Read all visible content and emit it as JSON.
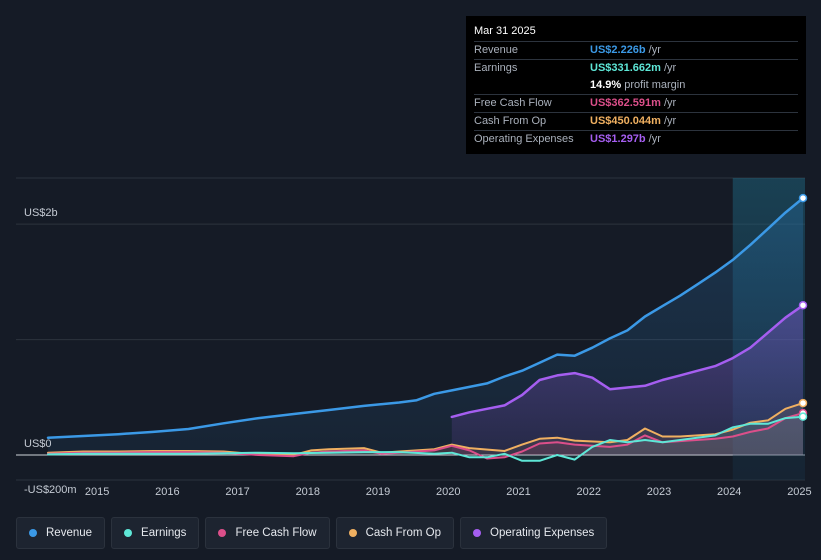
{
  "tooltip": {
    "date": "Mar 31 2025",
    "rows": [
      {
        "label": "Revenue",
        "value": "US$2.226b",
        "unit": "/yr"
      },
      {
        "label": "Earnings",
        "value": "US$331.662m",
        "unit": "/yr"
      },
      {
        "label": "",
        "value": "14.9%",
        "unit": "profit margin"
      },
      {
        "label": "Free Cash Flow",
        "value": "US$362.591m",
        "unit": "/yr"
      },
      {
        "label": "Cash From Op",
        "value": "US$450.044m",
        "unit": "/yr"
      },
      {
        "label": "Operating Expenses",
        "value": "US$1.297b",
        "unit": "/yr"
      }
    ]
  },
  "legend": [
    {
      "label": "Revenue",
      "color": "#3b99e6"
    },
    {
      "label": "Earnings",
      "color": "#5ee7d7"
    },
    {
      "label": "Free Cash Flow",
      "color": "#dc4f8a"
    },
    {
      "label": "Cash From Op",
      "color": "#f0b061"
    },
    {
      "label": "Operating Expenses",
      "color": "#a55ef0"
    }
  ],
  "chart_data": {
    "type": "line",
    "title": "",
    "y_unit": "US$ millions",
    "ylim": [
      -200,
      2400
    ],
    "y_tick_labels": [
      {
        "value": 2000,
        "label": "US$2b"
      },
      {
        "value": 0,
        "label": "US$0"
      },
      {
        "value": -200,
        "label": "-US$200m"
      }
    ],
    "xlim": [
      2014.5,
      2025.25
    ],
    "x_ticks": [
      "2015",
      "2016",
      "2017",
      "2018",
      "2019",
      "2020",
      "2021",
      "2022",
      "2023",
      "2024",
      "2025"
    ],
    "highlight_from": 2024.25,
    "series": [
      {
        "name": "Revenue",
        "color": "#3b99e6",
        "points": [
          [
            2014.5,
            150
          ],
          [
            2015,
            165
          ],
          [
            2015.5,
            180
          ],
          [
            2016,
            200
          ],
          [
            2016.5,
            225
          ],
          [
            2017,
            275
          ],
          [
            2017.5,
            320
          ],
          [
            2018,
            355
          ],
          [
            2018.5,
            390
          ],
          [
            2019,
            425
          ],
          [
            2019.5,
            455
          ],
          [
            2019.75,
            475
          ],
          [
            2020,
            530
          ],
          [
            2020.25,
            560
          ],
          [
            2020.5,
            590
          ],
          [
            2020.75,
            620
          ],
          [
            2021,
            680
          ],
          [
            2021.25,
            730
          ],
          [
            2021.5,
            800
          ],
          [
            2021.75,
            870
          ],
          [
            2022,
            860
          ],
          [
            2022.25,
            930
          ],
          [
            2022.5,
            1010
          ],
          [
            2022.75,
            1080
          ],
          [
            2023,
            1200
          ],
          [
            2023.25,
            1290
          ],
          [
            2023.5,
            1380
          ],
          [
            2023.75,
            1480
          ],
          [
            2024,
            1580
          ],
          [
            2024.25,
            1690
          ],
          [
            2024.5,
            1820
          ],
          [
            2024.75,
            1960
          ],
          [
            2025,
            2100
          ],
          [
            2025.25,
            2226
          ]
        ]
      },
      {
        "name": "Operating Expenses",
        "color": "#a55ef0",
        "points": [
          [
            2020.25,
            330
          ],
          [
            2020.5,
            370
          ],
          [
            2020.75,
            400
          ],
          [
            2021,
            430
          ],
          [
            2021.25,
            520
          ],
          [
            2021.5,
            650
          ],
          [
            2021.75,
            690
          ],
          [
            2022,
            710
          ],
          [
            2022.25,
            670
          ],
          [
            2022.5,
            570
          ],
          [
            2022.75,
            585
          ],
          [
            2023,
            600
          ],
          [
            2023.25,
            650
          ],
          [
            2023.5,
            690
          ],
          [
            2023.75,
            730
          ],
          [
            2024,
            770
          ],
          [
            2024.25,
            840
          ],
          [
            2024.5,
            930
          ],
          [
            2024.75,
            1060
          ],
          [
            2025,
            1190
          ],
          [
            2025.25,
            1297
          ]
        ]
      },
      {
        "name": "Cash From Op",
        "color": "#f0b061",
        "points": [
          [
            2014.5,
            20
          ],
          [
            2015,
            30
          ],
          [
            2015.5,
            30
          ],
          [
            2016,
            35
          ],
          [
            2016.5,
            35
          ],
          [
            2017,
            30
          ],
          [
            2017.5,
            5
          ],
          [
            2018,
            0
          ],
          [
            2018.25,
            40
          ],
          [
            2018.5,
            50
          ],
          [
            2019,
            60
          ],
          [
            2019.25,
            20
          ],
          [
            2019.5,
            30
          ],
          [
            2020,
            50
          ],
          [
            2020.25,
            90
          ],
          [
            2020.5,
            60
          ],
          [
            2021,
            35
          ],
          [
            2021.25,
            90
          ],
          [
            2021.5,
            140
          ],
          [
            2021.75,
            150
          ],
          [
            2022,
            125
          ],
          [
            2022.5,
            110
          ],
          [
            2022.75,
            130
          ],
          [
            2023,
            230
          ],
          [
            2023.25,
            160
          ],
          [
            2023.5,
            160
          ],
          [
            2024,
            180
          ],
          [
            2024.25,
            220
          ],
          [
            2024.5,
            280
          ],
          [
            2024.75,
            300
          ],
          [
            2025,
            400
          ],
          [
            2025.25,
            450
          ]
        ]
      },
      {
        "name": "Free Cash Flow",
        "color": "#dc4f8a",
        "points": [
          [
            2014.5,
            10
          ],
          [
            2015,
            20
          ],
          [
            2015.5,
            20
          ],
          [
            2016,
            25
          ],
          [
            2016.5,
            25
          ],
          [
            2017,
            20
          ],
          [
            2017.5,
            0
          ],
          [
            2018,
            -10
          ],
          [
            2018.25,
            20
          ],
          [
            2018.5,
            30
          ],
          [
            2019,
            40
          ],
          [
            2019.25,
            10
          ],
          [
            2019.5,
            20
          ],
          [
            2020,
            40
          ],
          [
            2020.25,
            80
          ],
          [
            2020.5,
            40
          ],
          [
            2020.75,
            -30
          ],
          [
            2021,
            -20
          ],
          [
            2021.25,
            30
          ],
          [
            2021.5,
            100
          ],
          [
            2021.75,
            110
          ],
          [
            2022,
            90
          ],
          [
            2022.5,
            70
          ],
          [
            2022.75,
            90
          ],
          [
            2023,
            170
          ],
          [
            2023.25,
            110
          ],
          [
            2023.5,
            120
          ],
          [
            2024,
            140
          ],
          [
            2024.25,
            160
          ],
          [
            2024.5,
            200
          ],
          [
            2024.75,
            230
          ],
          [
            2025,
            320
          ],
          [
            2025.25,
            363
          ]
        ]
      },
      {
        "name": "Earnings",
        "color": "#5ee7d7",
        "points": [
          [
            2014.5,
            5
          ],
          [
            2015,
            10
          ],
          [
            2015.5,
            10
          ],
          [
            2016,
            10
          ],
          [
            2016.5,
            10
          ],
          [
            2017,
            15
          ],
          [
            2017.5,
            20
          ],
          [
            2018,
            15
          ],
          [
            2018.5,
            20
          ],
          [
            2019,
            25
          ],
          [
            2019.5,
            25
          ],
          [
            2020,
            10
          ],
          [
            2020.25,
            20
          ],
          [
            2020.5,
            -20
          ],
          [
            2020.75,
            -20
          ],
          [
            2021,
            10
          ],
          [
            2021.25,
            -50
          ],
          [
            2021.5,
            -50
          ],
          [
            2021.75,
            0
          ],
          [
            2022,
            -40
          ],
          [
            2022.25,
            70
          ],
          [
            2022.5,
            130
          ],
          [
            2022.75,
            110
          ],
          [
            2023,
            130
          ],
          [
            2023.25,
            110
          ],
          [
            2023.5,
            130
          ],
          [
            2024,
            170
          ],
          [
            2024.25,
            240
          ],
          [
            2024.5,
            270
          ],
          [
            2024.75,
            270
          ],
          [
            2025,
            320
          ],
          [
            2025.25,
            332
          ]
        ]
      }
    ]
  }
}
